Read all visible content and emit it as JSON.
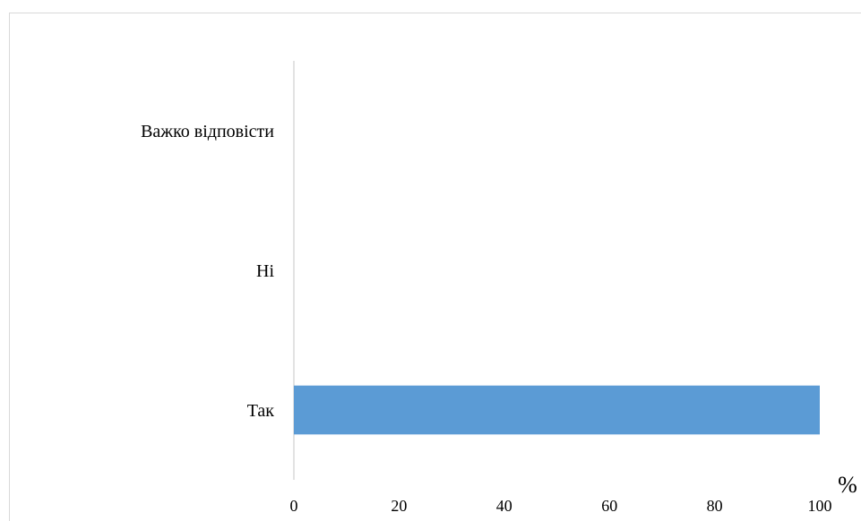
{
  "chart_data": {
    "type": "bar",
    "orientation": "horizontal",
    "categories": [
      "Так",
      "Ні",
      "Важко відповісти"
    ],
    "values": [
      100,
      0,
      0
    ],
    "title": "",
    "xlabel": "%",
    "ylabel": "",
    "xlim": [
      0,
      100
    ],
    "xticks": [
      "0",
      "20",
      "40",
      "60",
      "80",
      "100"
    ],
    "grid": false,
    "bar_color": "#5b9bd5"
  }
}
